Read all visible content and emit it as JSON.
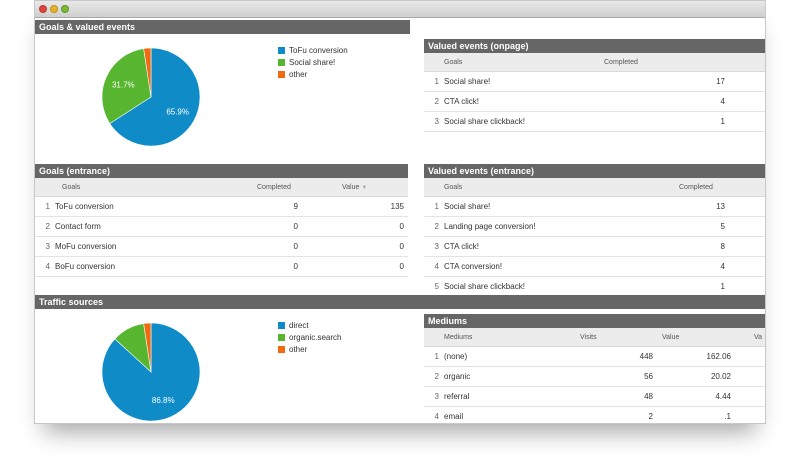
{
  "colors": {
    "blue": "#0f8cc8",
    "green": "#57b530",
    "orange": "#f06a0f",
    "header": "#666666"
  },
  "goals_valued": {
    "title": "Goals & valued events",
    "chart_data": {
      "type": "pie",
      "categories": [
        "ToFu conversion",
        "Social share!",
        "other"
      ],
      "values": [
        65.9,
        31.7,
        2.4
      ],
      "labels": [
        "65.9%",
        "31.7%",
        ""
      ]
    }
  },
  "valued_onpage": {
    "title": "Valued events (onpage)",
    "headers": {
      "goals": "Goals",
      "completed": "Completed"
    },
    "rows": [
      {
        "idx": "1",
        "name": "Social share!",
        "completed": "17"
      },
      {
        "idx": "2",
        "name": "CTA click!",
        "completed": "4"
      },
      {
        "idx": "3",
        "name": "Social share clickback!",
        "completed": "1"
      }
    ]
  },
  "goals_entrance": {
    "title": "Goals (entrance)",
    "headers": {
      "goals": "Goals",
      "completed": "Completed",
      "value": "Value"
    },
    "sort_icon": "sort-down-icon",
    "rows": [
      {
        "idx": "1",
        "name": "ToFu conversion",
        "completed": "9",
        "value": "135"
      },
      {
        "idx": "2",
        "name": "Contact form",
        "completed": "0",
        "value": "0"
      },
      {
        "idx": "3",
        "name": "MoFu conversion",
        "completed": "0",
        "value": "0"
      },
      {
        "idx": "4",
        "name": "BoFu conversion",
        "completed": "0",
        "value": "0"
      }
    ]
  },
  "valued_entrance": {
    "title": "Valued events (entrance)",
    "headers": {
      "goals": "Goals",
      "completed": "Completed"
    },
    "rows": [
      {
        "idx": "1",
        "name": "Social share!",
        "completed": "13"
      },
      {
        "idx": "2",
        "name": "Landing page conversion!",
        "completed": "5"
      },
      {
        "idx": "3",
        "name": "CTA click!",
        "completed": "8"
      },
      {
        "idx": "4",
        "name": "CTA conversion!",
        "completed": "4"
      },
      {
        "idx": "5",
        "name": "Social share clickback!",
        "completed": "1"
      }
    ]
  },
  "traffic": {
    "title": "Traffic sources",
    "chart_data": {
      "type": "pie",
      "categories": [
        "direct",
        "organic.search",
        "other"
      ],
      "values": [
        86.8,
        10.8,
        2.4
      ],
      "labels": [
        "86.8%",
        "",
        ""
      ]
    }
  },
  "mediums": {
    "title": "Mediums",
    "headers": {
      "mediums": "Mediums",
      "visits": "Visits",
      "value": "Value",
      "extra": "Va"
    },
    "rows": [
      {
        "idx": "1",
        "name": "(none)",
        "visits": "448",
        "value": "162.06"
      },
      {
        "idx": "2",
        "name": "organic",
        "visits": "56",
        "value": "20.02"
      },
      {
        "idx": "3",
        "name": "referral",
        "visits": "48",
        "value": "4.44"
      },
      {
        "idx": "4",
        "name": "email",
        "visits": "2",
        "value": ".1"
      }
    ]
  }
}
